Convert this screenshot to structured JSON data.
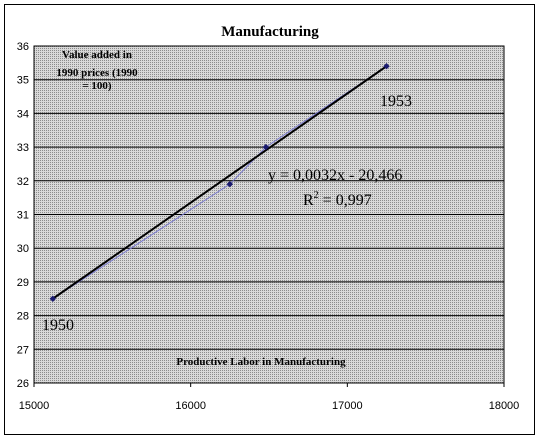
{
  "chart_data": {
    "type": "scatter",
    "title": "Manufacturing",
    "xlabel": "Productive Labor in Manufacturing",
    "ylabel_lines": [
      "Value added in",
      "1990 prices (1990",
      "= 100)"
    ],
    "xlim": [
      15000,
      18000
    ],
    "ylim": [
      26,
      36
    ],
    "x_ticks": [
      "15000",
      "16000",
      "17000",
      "18000"
    ],
    "y_ticks": [
      "26",
      "27",
      "28",
      "29",
      "30",
      "31",
      "32",
      "33",
      "34",
      "35",
      "36"
    ],
    "series": [
      {
        "points": [
          {
            "x": 15120,
            "y": 28.5
          },
          {
            "x": 16250,
            "y": 31.9
          },
          {
            "x": 16480,
            "y": 33.0
          },
          {
            "x": 17250,
            "y": 35.4
          }
        ]
      }
    ],
    "trendline": {
      "type": "linear",
      "x0": 15120,
      "y0": 28.5,
      "x1": 17250,
      "y1": 35.4
    },
    "equation": "y = 0,0032x - 20,466",
    "r2_label": "R",
    "r2_sup": "2",
    "r2_value": " = 0,997",
    "point_labels": [
      "1950",
      "1953"
    ],
    "grid": true,
    "legend": "none",
    "colors": {
      "markers": "#1a1a6e",
      "trendline": "#000000",
      "connector": "#7a7ad0",
      "plot_bg": "#c4c4c4"
    }
  }
}
